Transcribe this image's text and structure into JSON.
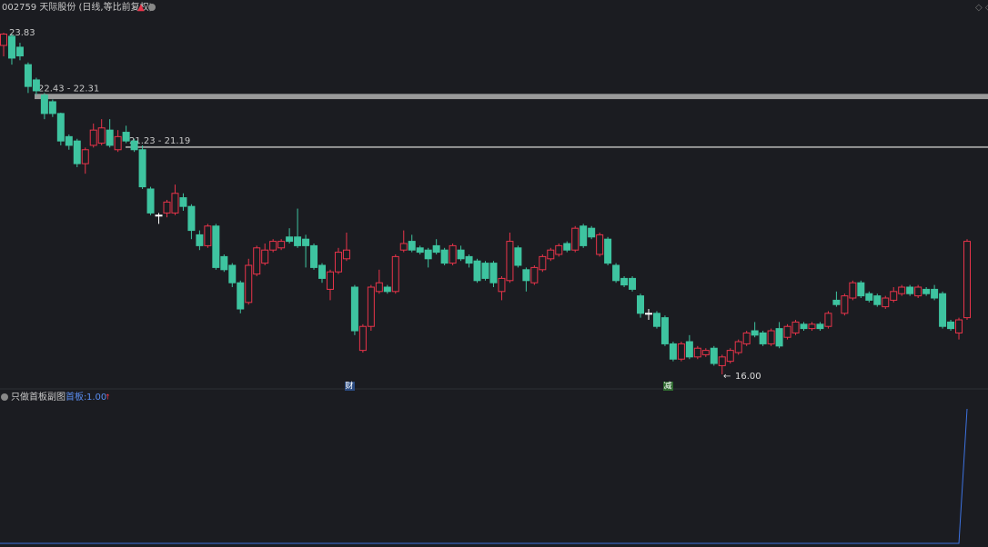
{
  "chart_data": [
    {
      "type": "candlestick",
      "title": "002759 天际股份 (日线,等比前复权)",
      "up_color": "#e8344a",
      "down_color": "#3ec4a0",
      "flat_color": "#ffffff",
      "ylim": [
        15.73,
        24.29
      ],
      "open": [
        23.54,
        23.75,
        23.5,
        23.1,
        22.75,
        22.4,
        22.25,
        21.98,
        21.45,
        21.35,
        20.83,
        21.25,
        21.3,
        21.6,
        21.15,
        21.55,
        21.35,
        21.15,
        20.25,
        19.65,
        19.7,
        19.7,
        20.05,
        19.85,
        19.2,
        18.95,
        19.4,
        18.7,
        18.5,
        18.1,
        17.65,
        18.3,
        18.55,
        18.85,
        18.9,
        19.15,
        19.15,
        19.1,
        18.95,
        18.5,
        17.95,
        18.35,
        18.65,
        18.0,
        16.55,
        17.1,
        17.9,
        18.0,
        17.9,
        18.85,
        19.05,
        18.9,
        18.85,
        18.95,
        18.85,
        18.55,
        18.85,
        18.7,
        18.6,
        18.55,
        18.55,
        17.9,
        18.15,
        18.9,
        18.4,
        18.1,
        18.4,
        18.65,
        18.75,
        19.0,
        18.85,
        19.4,
        19.35,
        18.75,
        19.1,
        18.5,
        18.2,
        18.2,
        17.8,
        17.4,
        17.4,
        17.3,
        16.7,
        16.35,
        16.75,
        16.4,
        16.45,
        16.6,
        16.2,
        16.3,
        16.5,
        16.7,
        17.0,
        16.95,
        16.7,
        17.05,
        16.85,
        16.95,
        17.15,
        17.05,
        17.15,
        17.1,
        17.7,
        17.4,
        17.75,
        18.1,
        17.85,
        17.8,
        17.55,
        17.7,
        17.85,
        18.0,
        17.8,
        17.95,
        17.95,
        17.85,
        17.2,
        16.95,
        17.3
      ],
      "high": [
        23.83,
        23.8,
        23.6,
        23.15,
        22.8,
        22.45,
        22.3,
        22.0,
        21.5,
        21.4,
        21.2,
        21.75,
        21.85,
        21.85,
        21.6,
        21.7,
        21.4,
        21.25,
        20.3,
        19.7,
        20.0,
        20.35,
        20.15,
        19.9,
        19.3,
        19.45,
        19.45,
        18.75,
        18.55,
        18.15,
        18.65,
        18.95,
        19.0,
        19.1,
        19.1,
        19.35,
        19.8,
        19.2,
        19.0,
        18.55,
        18.4,
        18.9,
        19.25,
        18.05,
        17.15,
        18.05,
        18.4,
        18.05,
        18.75,
        19.3,
        19.2,
        18.95,
        18.9,
        19.1,
        18.9,
        19.0,
        18.95,
        18.75,
        18.65,
        18.6,
        18.6,
        18.25,
        19.25,
        18.95,
        18.45,
        18.5,
        18.75,
        18.9,
        19.0,
        19.05,
        19.4,
        19.45,
        19.4,
        19.25,
        19.15,
        18.55,
        18.25,
        18.25,
        17.85,
        17.5,
        17.45,
        17.35,
        16.75,
        16.75,
        16.9,
        16.65,
        16.6,
        16.65,
        16.45,
        16.6,
        16.8,
        17.0,
        17.2,
        17.0,
        17.05,
        17.2,
        17.15,
        17.25,
        17.2,
        17.2,
        17.2,
        17.45,
        17.9,
        17.85,
        18.15,
        18.15,
        17.9,
        17.85,
        17.8,
        18.0,
        18.05,
        18.05,
        18.05,
        18.0,
        18.05,
        17.9,
        17.25,
        17.3,
        19.1
      ],
      "low": [
        23.29,
        23.1,
        23.2,
        22.45,
        22.4,
        21.85,
        21.9,
        21.25,
        21.15,
        20.75,
        20.6,
        21.2,
        21.25,
        21.2,
        21.1,
        21.3,
        21.1,
        20.25,
        19.65,
        19.45,
        19.6,
        19.65,
        19.75,
        19.1,
        18.85,
        18.9,
        18.4,
        18.35,
        18.0,
        17.4,
        17.6,
        18.25,
        18.5,
        18.8,
        18.85,
        19.0,
        18.9,
        18.45,
        18.4,
        18.1,
        17.7,
        18.3,
        18.6,
        16.9,
        16.5,
        17.0,
        17.85,
        17.85,
        17.85,
        18.8,
        18.8,
        18.75,
        18.45,
        18.75,
        18.5,
        18.5,
        18.6,
        18.45,
        18.1,
        18.15,
        18.0,
        17.7,
        18.1,
        18.45,
        17.9,
        18.05,
        18.35,
        18.6,
        18.7,
        18.8,
        18.8,
        18.9,
        19.1,
        18.7,
        18.5,
        18.1,
        18.0,
        17.9,
        17.3,
        17.25,
        17.05,
        16.65,
        16.3,
        16.3,
        16.35,
        16.35,
        16.4,
        16.2,
        16.0,
        16.25,
        16.45,
        16.65,
        16.85,
        16.65,
        16.65,
        16.6,
        16.8,
        16.9,
        17.0,
        17.0,
        17.0,
        17.05,
        17.55,
        17.35,
        17.7,
        17.75,
        17.65,
        17.55,
        17.5,
        17.65,
        17.8,
        17.8,
        17.75,
        17.8,
        17.7,
        17.05,
        17.0,
        16.8,
        17.25
      ],
      "close": [
        23.8,
        23.25,
        23.3,
        22.6,
        22.5,
        21.98,
        21.98,
        21.35,
        21.25,
        20.83,
        21.15,
        21.6,
        21.65,
        21.25,
        21.45,
        21.35,
        21.15,
        20.3,
        19.7,
        19.65,
        19.95,
        20.15,
        19.85,
        19.3,
        18.95,
        19.4,
        18.45,
        18.4,
        18.1,
        17.5,
        18.5,
        18.9,
        18.85,
        19.05,
        19.05,
        19.05,
        18.95,
        18.95,
        18.45,
        18.2,
        18.35,
        18.8,
        18.85,
        17.0,
        17.1,
        18.0,
        18.1,
        17.9,
        18.7,
        19.0,
        18.85,
        18.8,
        18.65,
        18.8,
        18.55,
        18.95,
        18.65,
        18.55,
        18.15,
        18.2,
        18.1,
        18.2,
        19.05,
        18.5,
        18.15,
        18.45,
        18.7,
        18.85,
        18.95,
        18.85,
        19.35,
        18.95,
        19.15,
        19.2,
        18.55,
        18.15,
        18.05,
        17.95,
        17.4,
        17.4,
        17.1,
        16.7,
        16.35,
        16.7,
        16.4,
        16.6,
        16.55,
        16.25,
        16.4,
        16.55,
        16.75,
        16.95,
        16.9,
        16.7,
        17.0,
        16.65,
        17.1,
        17.2,
        17.05,
        17.15,
        17.05,
        17.4,
        17.6,
        17.8,
        18.1,
        17.8,
        17.7,
        17.6,
        17.75,
        17.9,
        18.0,
        17.85,
        18.0,
        17.85,
        17.75,
        17.1,
        17.05,
        17.25,
        19.05
      ],
      "levels": [
        {
          "label": "22.43 - 22.31",
          "from": 22.43,
          "to": 22.31,
          "color": "#9a9a9a"
        },
        {
          "label": "21.23 - 21.19",
          "from": 21.23,
          "to": 21.19,
          "color": "#9a9a9a"
        }
      ],
      "high_label": 23.83,
      "low_label": {
        "value": 16,
        "label": "16.00"
      },
      "markers": [
        "财",
        "减"
      ]
    },
    {
      "type": "line",
      "title": "只做首板副图",
      "legend_name": "首板:",
      "color": "#3d72e0",
      "last_label": {
        "value": 1,
        "label": "1.00"
      },
      "ylim": [
        0,
        1
      ],
      "values": [
        0,
        0,
        0,
        0,
        0,
        0,
        0,
        0,
        0,
        0,
        0,
        0,
        0,
        0,
        0,
        0,
        0,
        0,
        0,
        0,
        0,
        0,
        0,
        0,
        0,
        0,
        0,
        0,
        0,
        0,
        0,
        0,
        0,
        0,
        0,
        0,
        0,
        0,
        0,
        0,
        0,
        0,
        0,
        0,
        0,
        0,
        0,
        0,
        0,
        0,
        0,
        0,
        0,
        0,
        0,
        0,
        0,
        0,
        0,
        0,
        0,
        0,
        0,
        0,
        0,
        0,
        0,
        0,
        0,
        0,
        0,
        0,
        0,
        0,
        0,
        0,
        0,
        0,
        0,
        0,
        0,
        0,
        0,
        0,
        0,
        0,
        0,
        0,
        0,
        0,
        0,
        0,
        0,
        0,
        0,
        0,
        0,
        0,
        0,
        0,
        0,
        0,
        0,
        0,
        0,
        0,
        0,
        0,
        0,
        0,
        0,
        0,
        0,
        0,
        0,
        0,
        0,
        0,
        1
      ]
    }
  ]
}
